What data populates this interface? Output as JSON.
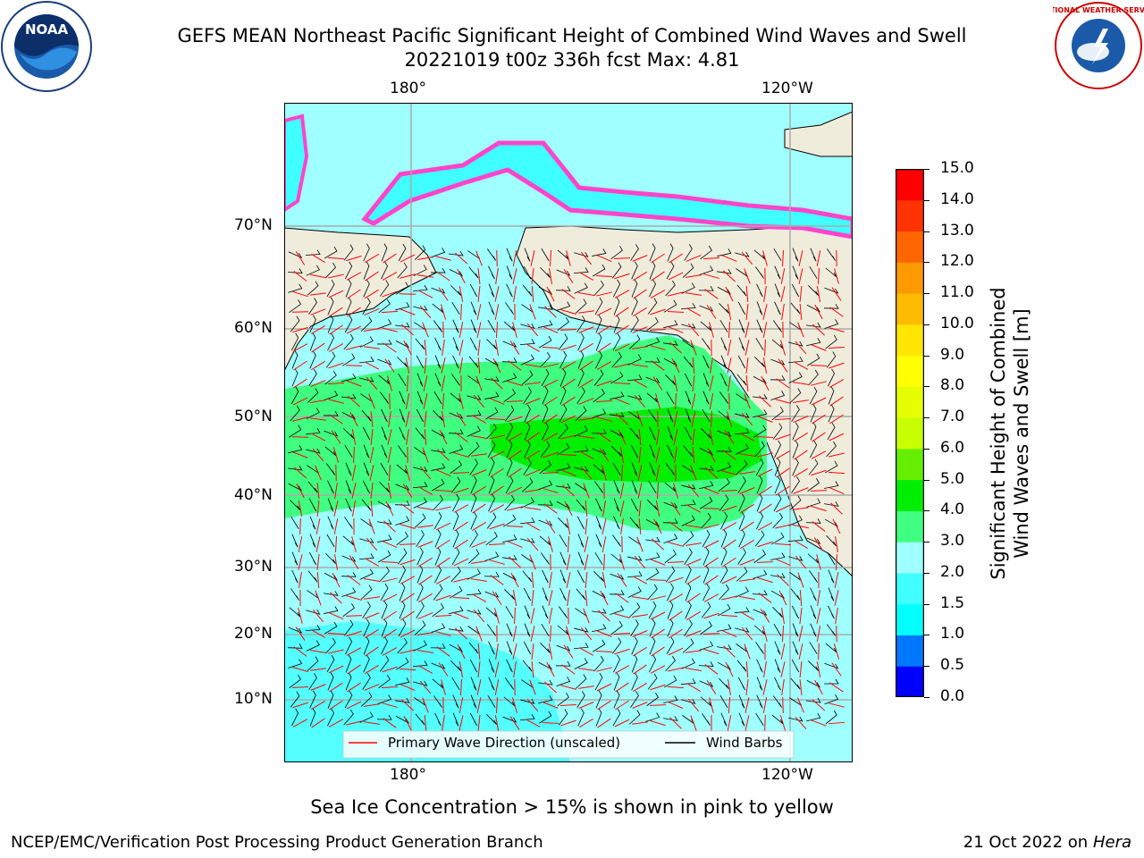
{
  "header": {
    "title_line1": "GEFS MEAN Northeast Pacific Significant Height of Combined Wind Waves and Swell",
    "title_line2": "20221019 t00z 336h fcst   Max: 4.81"
  },
  "logos": {
    "left": {
      "icon": "noaa-logo-icon",
      "text": "NOAA"
    },
    "right": {
      "icon": "nws-logo-icon",
      "text": "NATIONAL WEATHER SERVICE"
    }
  },
  "map": {
    "lon_ticks_top": [
      "180°",
      "120°W"
    ],
    "lon_ticks_bottom": [
      "180°",
      "120°W"
    ],
    "lat_ticks": [
      "70°N",
      "60°N",
      "50°N",
      "40°N",
      "30°N",
      "20°N",
      "10°N"
    ],
    "land_color": "#efecdc",
    "grid": true,
    "legend": {
      "placement": "bottom-center",
      "items": [
        {
          "label": "Primary Wave Direction (unscaled)",
          "color": "#ff0000"
        },
        {
          "label": "Wind Barbs",
          "color": "#000000"
        }
      ]
    }
  },
  "colorbar": {
    "label_line1": "Significant Height of Combined",
    "label_line2": "Wind Waves and Swell [m]",
    "ticks": [
      "15.0",
      "14.0",
      "13.0",
      "12.0",
      "11.0",
      "10.0",
      "9.0",
      "8.0",
      "7.0",
      "6.0",
      "5.0",
      "4.0",
      "3.0",
      "2.0",
      "1.5",
      "1.0",
      "0.5",
      "0.0"
    ],
    "colors_bottom_to_top": [
      "#0000ff",
      "#0077ff",
      "#00ffff",
      "#40ffff",
      "#a0ffff",
      "#40ff80",
      "#00ee00",
      "#66ee00",
      "#c8ff00",
      "#e6ff00",
      "#ffff00",
      "#ffe600",
      "#ffbb00",
      "#ff9900",
      "#ff6600",
      "#ff3300",
      "#ff0000"
    ]
  },
  "captions": {
    "sea_ice": "Sea Ice Concentration > 15% is shown in pink to yellow",
    "branch": "NCEP/EMC/Verification Post Processing Product Generation Branch",
    "date_prefix": "21 Oct 2022 on ",
    "machine": "Hera"
  }
}
